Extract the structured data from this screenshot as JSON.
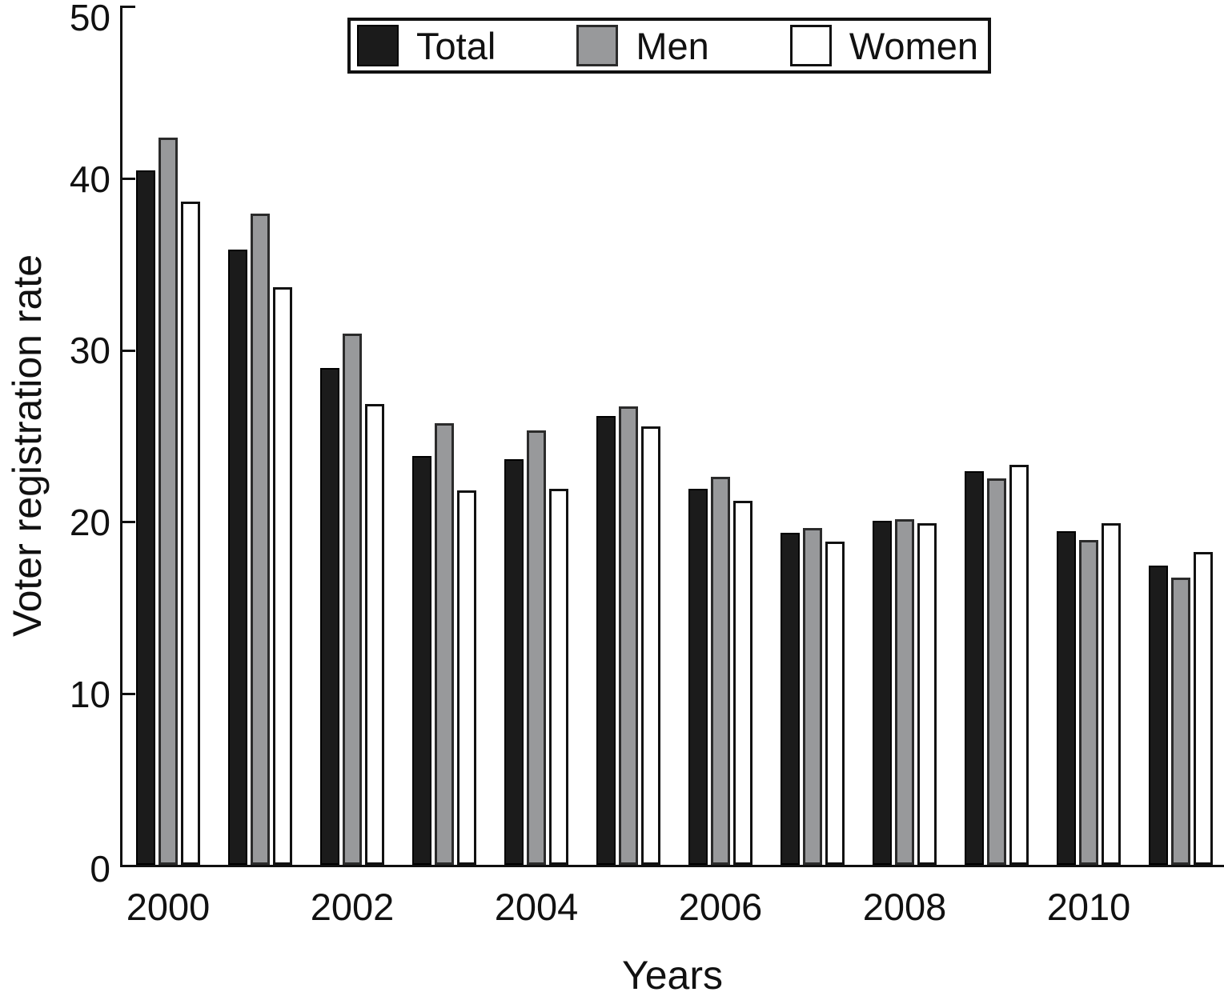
{
  "figure": {
    "y_axis_label": "Voter registration rate",
    "x_axis_label": "Years",
    "y_ticks": [
      "0",
      "10",
      "20",
      "30",
      "40",
      "50"
    ],
    "x_tick_labels": [
      "2000",
      "2002",
      "2004",
      "2006",
      "2008",
      "2010"
    ]
  },
  "legend": {
    "items": [
      {
        "label": "Total",
        "color": "#1b1b1b"
      },
      {
        "label": "Men",
        "color": "#98999b"
      },
      {
        "label": "Women",
        "color": "#ffffff"
      }
    ]
  },
  "chart_data": {
    "type": "bar",
    "title": "",
    "xlabel": "Years",
    "ylabel": "Voter registration rate",
    "ylim": [
      0,
      50
    ],
    "grid": false,
    "legend_position": "top-center",
    "categories": [
      2000,
      2001,
      2002,
      2003,
      2004,
      2005,
      2006,
      2007,
      2008,
      2009,
      2010,
      2011
    ],
    "x_tick_step": 2,
    "series": [
      {
        "name": "Total",
        "color": "#1b1b1b",
        "values": [
          40.4,
          35.8,
          28.9,
          23.8,
          23.6,
          26.1,
          21.9,
          19.3,
          20.0,
          22.9,
          19.4,
          17.4
        ]
      },
      {
        "name": "Men",
        "color": "#98999b",
        "values": [
          42.3,
          37.9,
          30.9,
          25.7,
          25.3,
          26.7,
          22.6,
          19.6,
          20.1,
          22.5,
          18.9,
          16.7
        ]
      },
      {
        "name": "Women",
        "color": "#ffffff",
        "values": [
          38.6,
          33.6,
          26.8,
          21.8,
          21.9,
          25.5,
          21.2,
          18.8,
          19.9,
          23.3,
          19.9,
          18.2
        ]
      }
    ]
  }
}
